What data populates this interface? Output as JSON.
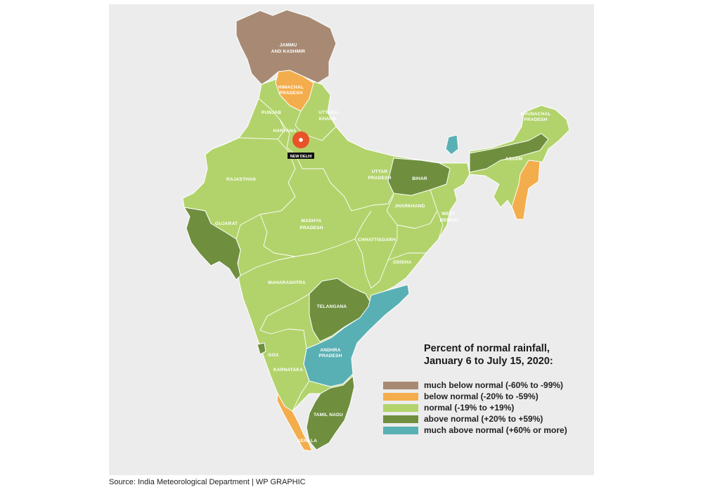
{
  "legend": {
    "title_line1": "Percent of normal rainfall,",
    "title_line2": "January 6 to July 15, 2020:",
    "items": [
      {
        "label": "much below normal (-60% to -99%)",
        "color": "#a88a74"
      },
      {
        "label": "below normal (-20% to  -59%)",
        "color": "#f4ad4c"
      },
      {
        "label": "normal (-19% to +19%)",
        "color": "#b2d36b"
      },
      {
        "label": "above normal (+20% to +59%)",
        "color": "#6f8f3f"
      },
      {
        "label": "much above normal (+60% or more)",
        "color": "#59b0b4"
      }
    ]
  },
  "labels": {
    "jk1": "JAMMU",
    "jk2": "AND KASHMIR",
    "hp1": "HIMACHAL",
    "hp2": "PRADESH",
    "punjab": "PUNJAB",
    "uk1": "UTTARA-",
    "uk2": "KHAND",
    "haryana": "HARYANA",
    "delhi": "NEW DELHI",
    "rajasthan": "RAJASTHAN",
    "up1": "UTTAR",
    "up2": "PRADESH",
    "bihar": "BIHAR",
    "arunachal1": "ARUNACHAL",
    "arunachal2": "PRADESH",
    "assam": "ASSAM",
    "gujarat": "GUJARAT",
    "mp1": "MADHYA",
    "mp2": "PRADESH",
    "jharkhand": "JHARKHAND",
    "wb1": "WEST",
    "wb2": "BENGAL",
    "chhattisgarh": "CHHATTISGARH",
    "odisha": "ODISHA",
    "maharashtra": "MAHARASHTRA",
    "telangana": "TELANGANA",
    "ap1": "ANDHRA",
    "ap2": "PRADESH",
    "goa": "GOA",
    "karnataka": "KARNATAKA",
    "tn": "TAMIL NADU",
    "kerala": "KERALA"
  },
  "source": "Source: India Meteorological Department  |  WP GRAPHIC"
}
